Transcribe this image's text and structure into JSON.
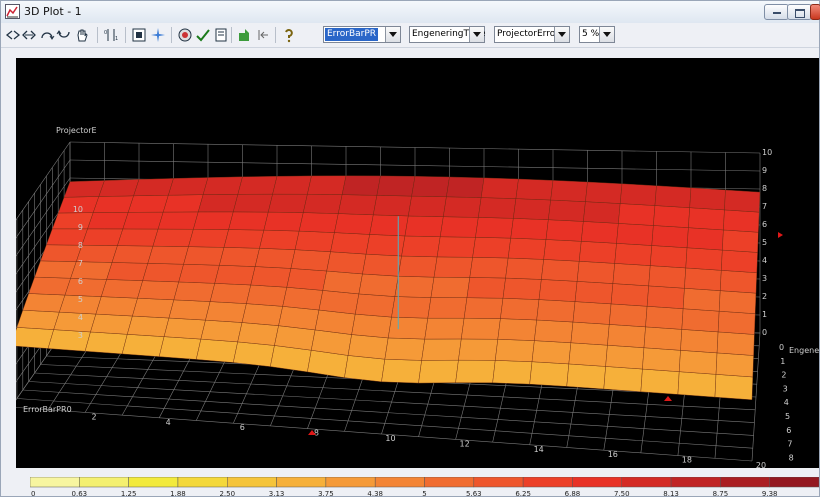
{
  "window": {
    "title": "3D Plot - 1"
  },
  "toolbar": {
    "icons": [
      "rotate-left-icon",
      "rotate-right-icon",
      "tilt-up-icon",
      "tilt-down-icon",
      "pan-hand-icon",
      "axis-scale-icon",
      "fit-view-icon",
      "sparkle-icon",
      "camera-icon",
      "check-icon",
      "page-icon",
      "export-icon",
      "reset-icon",
      "help-icon"
    ],
    "combo_x": "ErrorBarPR",
    "combo_y": "EngeneringTime",
    "combo_z": "ProjectorError",
    "combo_step": "5 %"
  },
  "plot": {
    "z_axis_title": "ProjectorE",
    "x_axis_title": "ErrorBarPR0",
    "y_axis_title": "Engeneri",
    "z_left_ticks": [
      "3",
      "4",
      "5",
      "6",
      "7",
      "8",
      "9",
      "10"
    ],
    "z_right_ticks": [
      "0",
      "1",
      "2",
      "3",
      "4",
      "5",
      "6",
      "7",
      "8",
      "9",
      "10"
    ],
    "x_ticks": [
      "2",
      "4",
      "6",
      "8",
      "10",
      "12",
      "14",
      "16",
      "18",
      "20"
    ],
    "y_ticks": [
      "0",
      "1",
      "2",
      "3",
      "4",
      "5",
      "6",
      "7",
      "8",
      "9",
      "10"
    ]
  },
  "legend": {
    "labels": [
      "0",
      "0.63",
      "1.25",
      "1.88",
      "2.50",
      "3.13",
      "3.75",
      "4.38",
      "5",
      "5.63",
      "6.25",
      "6.88",
      "7.50",
      "8.13",
      "8.75",
      "9.38"
    ],
    "colors": [
      "#f7f5a0",
      "#f4f070",
      "#f2ea3c",
      "#f4d83a",
      "#f5c43a",
      "#f6b03a",
      "#f59a38",
      "#f38434",
      "#f06c30",
      "#ee562c",
      "#ec4028",
      "#e83226",
      "#d42a24",
      "#c02424",
      "#aa1e22",
      "#941820"
    ]
  }
}
